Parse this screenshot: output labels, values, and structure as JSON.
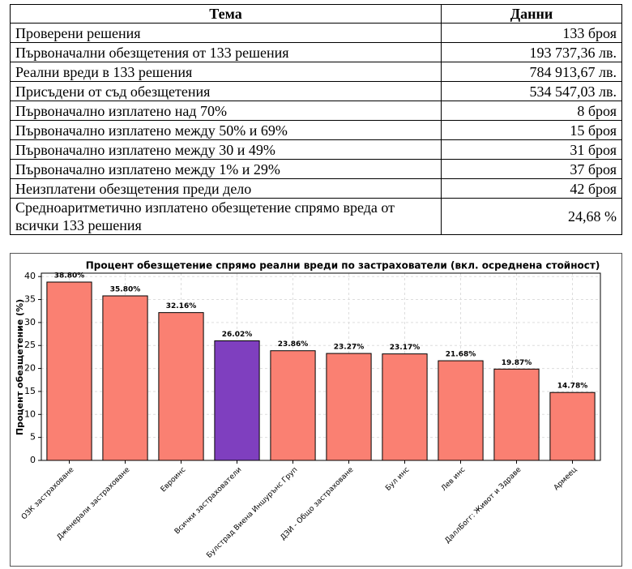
{
  "table": {
    "header": [
      "Тема",
      "Данни"
    ],
    "rows": [
      [
        "Проверени решения",
        "133 броя"
      ],
      [
        "Първоначални обезщетения от 133 решения",
        "193 737,36 лв."
      ],
      [
        "Реални вреди в 133 решения",
        "784 913,67 лв."
      ],
      [
        "Присъдени от съд обезщетения",
        "534 547,03 лв."
      ],
      [
        "Първоначално изплатено над 70%",
        "8 броя"
      ],
      [
        "Първоначално изплатено между 50% и 69%",
        "15 броя"
      ],
      [
        "Първоначално изплатено между 30 и 49%",
        "31 броя"
      ],
      [
        "Първоначално изплатено между 1% и 29%",
        "37 броя"
      ],
      [
        "Неизплатени обезщетения преди дело",
        "42 броя"
      ],
      [
        "Средноаритметично изплатено обезщетение спрямо вреда от всички 133 решения",
        "24,68 %"
      ]
    ]
  },
  "chart_data": {
    "type": "bar",
    "title": "Процент обезщетение спрямо реални вреди по застрахователи (вкл. осреднена стойност)",
    "ylabel": "Процент обезщетение (%)",
    "categories": [
      "ОЗК застраховане",
      "Дженерали застраховане",
      "Евроинс",
      "Всички застрахователи",
      "Булстрад Виена Иншурънс Груп",
      "ДЗИ - Общо застраховане",
      "Бул инс",
      "Лев инс",
      "ДаллБогг: Живот и Здраве",
      "Армеец"
    ],
    "values": [
      38.8,
      35.8,
      32.16,
      26.02,
      23.86,
      23.27,
      23.17,
      21.68,
      19.87,
      14.78
    ],
    "value_labels": [
      "38.80%",
      "35.80%",
      "32.16%",
      "26.02%",
      "23.86%",
      "23.27%",
      "23.17%",
      "21.68%",
      "19.87%",
      "14.78%"
    ],
    "colors": [
      "#fa8072",
      "#fa8072",
      "#fa8072",
      "#7f3fbf",
      "#fa8072",
      "#fa8072",
      "#fa8072",
      "#fa8072",
      "#fa8072",
      "#fa8072"
    ],
    "ylim": [
      0,
      40.74
    ],
    "yticks": [
      0,
      5,
      10,
      15,
      20,
      25,
      30,
      35,
      40
    ],
    "grid": true
  }
}
